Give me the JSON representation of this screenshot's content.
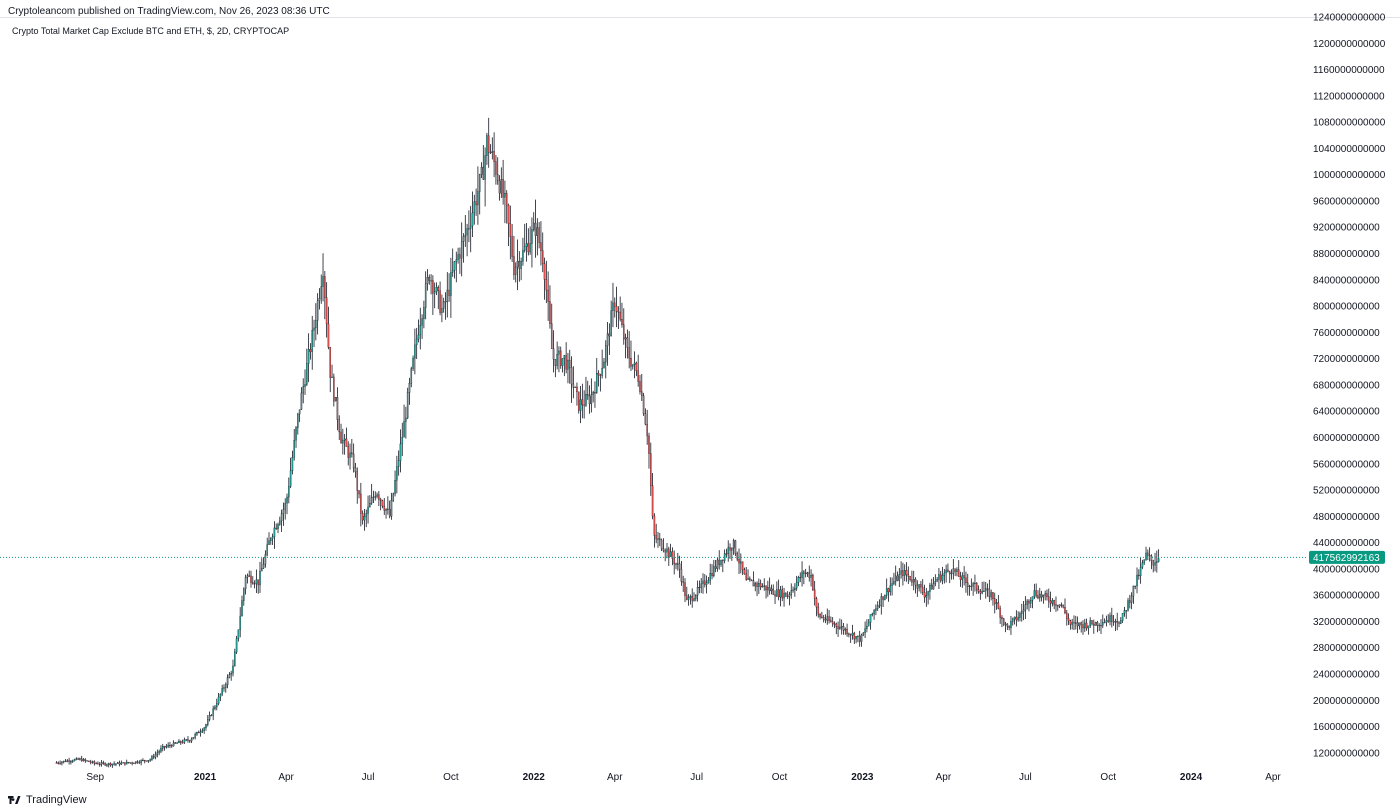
{
  "header": {
    "publisher": "Cryptoleancom published on TradingView.com, Nov 26, 2023 08:36 UTC"
  },
  "legend": {
    "symbol": "Crypto Total Market Cap Exclude BTC and ETH, $, 2D, CRYPTOCAP"
  },
  "footer": {
    "brand": "TradingView"
  },
  "colors": {
    "up": "#26a69a",
    "down": "#ef5350",
    "wick": "#131722",
    "price_line": "#089981",
    "price_badge": "#089981",
    "axis_text": "#131722"
  },
  "chart_data": {
    "type": "candlestick",
    "y_scale": "linear",
    "ylim": [
      100000000000,
      1240000000000
    ],
    "y_ticks": [
      {
        "value": 120000000000,
        "label": "120000000000"
      },
      {
        "value": 160000000000,
        "label": "160000000000"
      },
      {
        "value": 200000000000,
        "label": "200000000000"
      },
      {
        "value": 240000000000,
        "label": "240000000000"
      },
      {
        "value": 280000000000,
        "label": "280000000000"
      },
      {
        "value": 320000000000,
        "label": "320000000000"
      },
      {
        "value": 360000000000,
        "label": "360000000000"
      },
      {
        "value": 400000000000,
        "label": "400000000000"
      },
      {
        "value": 440000000000,
        "label": "440000000000"
      },
      {
        "value": 480000000000,
        "label": "480000000000"
      },
      {
        "value": 520000000000,
        "label": "520000000000"
      },
      {
        "value": 560000000000,
        "label": "560000000000"
      },
      {
        "value": 600000000000,
        "label": "600000000000"
      },
      {
        "value": 640000000000,
        "label": "640000000000"
      },
      {
        "value": 680000000000,
        "label": "680000000000"
      },
      {
        "value": 720000000000,
        "label": "720000000000"
      },
      {
        "value": 760000000000,
        "label": "760000000000"
      },
      {
        "value": 800000000000,
        "label": "800000000000"
      },
      {
        "value": 840000000000,
        "label": "840000000000"
      },
      {
        "value": 880000000000,
        "label": "880000000000"
      },
      {
        "value": 920000000000,
        "label": "920000000000"
      },
      {
        "value": 960000000000,
        "label": "960000000000"
      },
      {
        "value": 1000000000000,
        "label": "1000000000000"
      },
      {
        "value": 1040000000000,
        "label": "1040000000000"
      },
      {
        "value": 1080000000000,
        "label": "1080000000000"
      },
      {
        "value": 1120000000000,
        "label": "1120000000000"
      },
      {
        "value": 1160000000000,
        "label": "1160000000000"
      },
      {
        "value": 1200000000000,
        "label": "1200000000000"
      },
      {
        "value": 1240000000000,
        "label": "1240000000000"
      }
    ],
    "xlim": [
      "2020-07-15",
      "2024-05-01"
    ],
    "x_ticks": [
      {
        "date": "2020-09-01",
        "label": "Sep",
        "bold": false
      },
      {
        "date": "2021-01-01",
        "label": "2021",
        "bold": true
      },
      {
        "date": "2021-04-01",
        "label": "Apr",
        "bold": false
      },
      {
        "date": "2021-07-01",
        "label": "Jul",
        "bold": false
      },
      {
        "date": "2021-10-01",
        "label": "Oct",
        "bold": false
      },
      {
        "date": "2022-01-01",
        "label": "2022",
        "bold": true
      },
      {
        "date": "2022-04-01",
        "label": "Apr",
        "bold": false
      },
      {
        "date": "2022-07-01",
        "label": "Jul",
        "bold": false
      },
      {
        "date": "2022-10-01",
        "label": "Oct",
        "bold": false
      },
      {
        "date": "2023-01-01",
        "label": "2023",
        "bold": true
      },
      {
        "date": "2023-04-01",
        "label": "Apr",
        "bold": false
      },
      {
        "date": "2023-07-01",
        "label": "Jul",
        "bold": false
      },
      {
        "date": "2023-10-01",
        "label": "Oct",
        "bold": false
      },
      {
        "date": "2024-01-01",
        "label": "2024",
        "bold": true
      },
      {
        "date": "2024-04-01",
        "label": "Apr",
        "bold": false
      }
    ],
    "last_price": {
      "value": 417562992163,
      "label": "417562992163"
    },
    "close_series": [
      [
        "2020-07-20",
        105000000000
      ],
      [
        "2020-08-01",
        108000000000
      ],
      [
        "2020-08-15",
        110000000000
      ],
      [
        "2020-09-01",
        104000000000
      ],
      [
        "2020-09-15",
        103000000000
      ],
      [
        "2020-10-01",
        104000000000
      ],
      [
        "2020-10-15",
        106000000000
      ],
      [
        "2020-11-01",
        110000000000
      ],
      [
        "2020-11-15",
        128000000000
      ],
      [
        "2020-12-01",
        135000000000
      ],
      [
        "2020-12-15",
        140000000000
      ],
      [
        "2021-01-01",
        160000000000
      ],
      [
        "2021-01-15",
        200000000000
      ],
      [
        "2021-02-01",
        250000000000
      ],
      [
        "2021-02-15",
        390000000000
      ],
      [
        "2021-03-01",
        380000000000
      ],
      [
        "2021-03-15",
        450000000000
      ],
      [
        "2021-04-01",
        500000000000
      ],
      [
        "2021-04-15",
        640000000000
      ],
      [
        "2021-05-01",
        760000000000
      ],
      [
        "2021-05-12",
        860000000000
      ],
      [
        "2021-05-20",
        700000000000
      ],
      [
        "2021-06-01",
        600000000000
      ],
      [
        "2021-06-15",
        560000000000
      ],
      [
        "2021-06-25",
        470000000000
      ],
      [
        "2021-07-10",
        520000000000
      ],
      [
        "2021-07-25",
        480000000000
      ],
      [
        "2021-08-10",
        620000000000
      ],
      [
        "2021-08-25",
        760000000000
      ],
      [
        "2021-09-07",
        850000000000
      ],
      [
        "2021-09-22",
        790000000000
      ],
      [
        "2021-10-05",
        860000000000
      ],
      [
        "2021-10-20",
        920000000000
      ],
      [
        "2021-11-05",
        1000000000000
      ],
      [
        "2021-11-10",
        1050000000000
      ],
      [
        "2021-11-20",
        1010000000000
      ],
      [
        "2021-12-01",
        950000000000
      ],
      [
        "2021-12-10",
        860000000000
      ],
      [
        "2021-12-20",
        880000000000
      ],
      [
        "2022-01-03",
        920000000000
      ],
      [
        "2022-01-12",
        870000000000
      ],
      [
        "2022-01-22",
        720000000000
      ],
      [
        "2022-02-05",
        720000000000
      ],
      [
        "2022-02-20",
        650000000000
      ],
      [
        "2022-03-05",
        660000000000
      ],
      [
        "2022-03-20",
        720000000000
      ],
      [
        "2022-04-01",
        810000000000
      ],
      [
        "2022-04-15",
        730000000000
      ],
      [
        "2022-04-28",
        690000000000
      ],
      [
        "2022-05-08",
        600000000000
      ],
      [
        "2022-05-14",
        450000000000
      ],
      [
        "2022-05-28",
        430000000000
      ],
      [
        "2022-06-12",
        400000000000
      ],
      [
        "2022-06-20",
        350000000000
      ],
      [
        "2022-07-05",
        370000000000
      ],
      [
        "2022-07-20",
        400000000000
      ],
      [
        "2022-08-10",
        440000000000
      ],
      [
        "2022-08-25",
        380000000000
      ],
      [
        "2022-09-10",
        375000000000
      ],
      [
        "2022-09-25",
        365000000000
      ],
      [
        "2022-10-10",
        360000000000
      ],
      [
        "2022-10-28",
        395000000000
      ],
      [
        "2022-11-05",
        390000000000
      ],
      [
        "2022-11-12",
        330000000000
      ],
      [
        "2022-11-25",
        320000000000
      ],
      [
        "2022-12-10",
        310000000000
      ],
      [
        "2022-12-30",
        292000000000
      ],
      [
        "2023-01-15",
        340000000000
      ],
      [
        "2023-02-01",
        375000000000
      ],
      [
        "2023-02-15",
        395000000000
      ],
      [
        "2023-03-01",
        380000000000
      ],
      [
        "2023-03-12",
        360000000000
      ],
      [
        "2023-03-25",
        385000000000
      ],
      [
        "2023-04-10",
        400000000000
      ],
      [
        "2023-04-25",
        380000000000
      ],
      [
        "2023-05-10",
        370000000000
      ],
      [
        "2023-05-25",
        360000000000
      ],
      [
        "2023-06-10",
        310000000000
      ],
      [
        "2023-06-25",
        330000000000
      ],
      [
        "2023-07-10",
        365000000000
      ],
      [
        "2023-07-25",
        355000000000
      ],
      [
        "2023-08-10",
        345000000000
      ],
      [
        "2023-08-20",
        315000000000
      ],
      [
        "2023-09-05",
        315000000000
      ],
      [
        "2023-09-20",
        318000000000
      ],
      [
        "2023-10-05",
        325000000000
      ],
      [
        "2023-10-15",
        320000000000
      ],
      [
        "2023-10-25",
        355000000000
      ],
      [
        "2023-11-05",
        395000000000
      ],
      [
        "2023-11-12",
        420000000000
      ],
      [
        "2023-11-20",
        410000000000
      ],
      [
        "2023-11-26",
        417562992163
      ]
    ]
  }
}
